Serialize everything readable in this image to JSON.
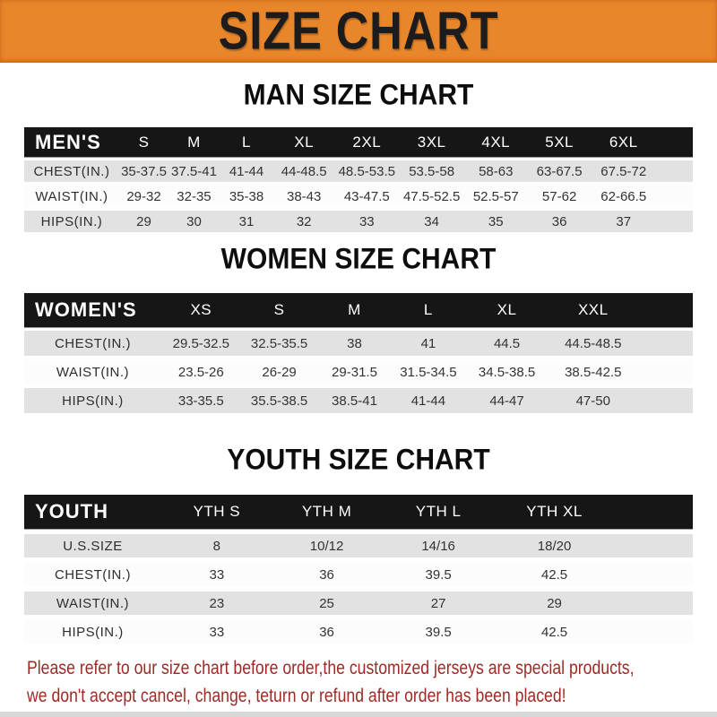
{
  "banner": {
    "title": "SIZE CHART"
  },
  "colors": {
    "banner_bg": "#E8862B",
    "header_bar": "#161616",
    "row_alt_gray": "#E2E2E2",
    "note_text": "#9E2A26"
  },
  "sections": [
    {
      "heading": "MAN SIZE CHART",
      "table": {
        "label": "MEN'S",
        "columns": [
          "S",
          "M",
          "L",
          "XL",
          "2XL",
          "3XL",
          "4XL",
          "5XL",
          "6XL"
        ],
        "rows": [
          {
            "label": "CHEST(IN.)",
            "values": [
              "35-37.5",
              "37.5-41",
              "41-44",
              "44-48.5",
              "48.5-53.5",
              "53.5-58",
              "58-63",
              "63-67.5",
              "67.5-72"
            ]
          },
          {
            "label": "WAIST(IN.)",
            "values": [
              "29-32",
              "32-35",
              "35-38",
              "38-43",
              "43-47.5",
              "47.5-52.5",
              "52.5-57",
              "57-62",
              "62-66.5"
            ]
          },
          {
            "label": "HIPS(IN.)",
            "values": [
              "29",
              "30",
              "31",
              "32",
              "33",
              "34",
              "35",
              "36",
              "37"
            ]
          }
        ]
      }
    },
    {
      "heading": "WOMEN SIZE CHART",
      "table": {
        "label": "WOMEN'S",
        "columns": [
          "XS",
          "S",
          "M",
          "L",
          "XL",
          "XXL"
        ],
        "rows": [
          {
            "label": "CHEST(IN.)",
            "values": [
              "29.5-32.5",
              "32.5-35.5",
              "38",
              "41",
              "44.5",
              "44.5-48.5"
            ]
          },
          {
            "label": "WAIST(IN.)",
            "values": [
              "23.5-26",
              "26-29",
              "29-31.5",
              "31.5-34.5",
              "34.5-38.5",
              "38.5-42.5"
            ]
          },
          {
            "label": "HIPS(IN.)",
            "values": [
              "33-35.5",
              "35.5-38.5",
              "38.5-41",
              "41-44",
              "44-47",
              "47-50"
            ]
          }
        ]
      }
    },
    {
      "heading": "YOUTH SIZE CHART",
      "table": {
        "label": "YOUTH",
        "columns": [
          "YTH S",
          "YTH M",
          "YTH L",
          "YTH XL"
        ],
        "rows": [
          {
            "label": "U.S.SIZE",
            "values": [
              "8",
              "10/12",
              "14/16",
              "18/20"
            ]
          },
          {
            "label": "CHEST(IN.)",
            "values": [
              "33",
              "36",
              "39.5",
              "42.5"
            ]
          },
          {
            "label": "WAIST(IN.)",
            "values": [
              "23",
              "25",
              "27",
              "29"
            ]
          },
          {
            "label": "HIPS(IN.)",
            "values": [
              "33",
              "36",
              "39.5",
              "42.5"
            ]
          }
        ]
      }
    }
  ],
  "footer_note": {
    "line1": "Please refer to our size chart before order,the customized jerseys are special products,",
    "line2": "we don't accept cancel, change, teturn or refund after order has been placed!"
  }
}
